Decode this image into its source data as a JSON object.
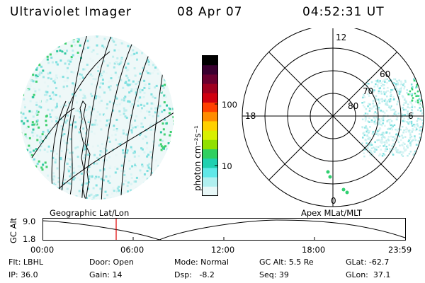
{
  "header": {
    "instrument": "Ultraviolet Imager",
    "date": "08 Apr 07",
    "time": "04:52:31 UT"
  },
  "colorbar": {
    "unit_label": "photon cm⁻²s⁻¹",
    "ticks": [
      "100",
      "10"
    ],
    "colors": [
      "#000000",
      "#3a0030",
      "#6a0030",
      "#a00020",
      "#d00010",
      "#ff4000",
      "#ff8c00",
      "#ffd000",
      "#d8f000",
      "#90e000",
      "#30d060",
      "#20d0b0",
      "#60e8e8",
      "#b0f0f0",
      "#e8f8f8"
    ]
  },
  "geo_panel": {
    "label": "Geographic Lat/Lon"
  },
  "polar_panel": {
    "label": "Apex MLat/MLT",
    "mlt_labels": [
      "12",
      "18",
      "6",
      "0"
    ],
    "lat_labels": [
      "60",
      "70",
      "80"
    ]
  },
  "orbit": {
    "axis_label": "GC Alt",
    "y_ticks": [
      "9.0",
      "1.8"
    ],
    "x_ticks": [
      "00:00",
      "06:00",
      "12:00",
      "18:00",
      "23:59"
    ],
    "marker_color": "#e00000"
  },
  "info": {
    "filter": "Flt: LBHL",
    "door": "Door: Open",
    "mode": "Mode: Normal",
    "gc_alt": "GC Alt: 5.5 Re",
    "glat": "GLat: -62.7",
    "ip": "IP: 36.0",
    "gain": "Gain: 14",
    "dsp": "Dsp:   -8.2",
    "seq": "Seq: 39",
    "glon": "GLon:  37.1"
  }
}
